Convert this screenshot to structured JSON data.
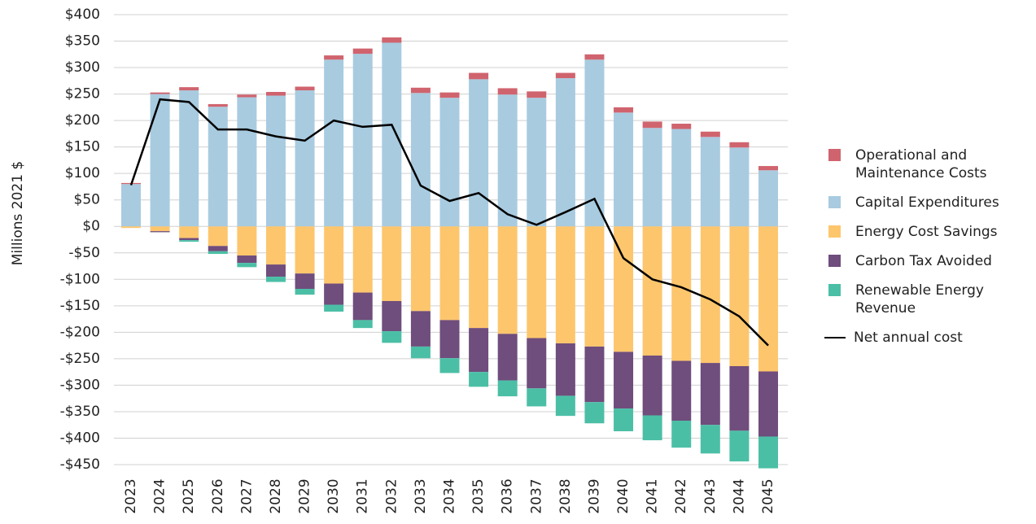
{
  "chart_data": {
    "type": "bar",
    "y_label": "Millions 2021 $",
    "categories": [
      "2023",
      "2024",
      "2025",
      "2026",
      "2027",
      "2028",
      "2029",
      "2030",
      "2031",
      "2032",
      "2033",
      "2034",
      "2035",
      "2036",
      "2037",
      "2038",
      "2039",
      "2040",
      "2041",
      "2042",
      "2043",
      "2044",
      "2045"
    ],
    "series": [
      {
        "name": "Operational and Maintenance Costs",
        "color": "#d0646e",
        "values": [
          2,
          3,
          6,
          5,
          5,
          7,
          7,
          8,
          10,
          10,
          10,
          10,
          12,
          12,
          12,
          10,
          10,
          10,
          12,
          10,
          10,
          10,
          8
        ]
      },
      {
        "name": "Capital Expenditures",
        "color": "#a8cbe0",
        "values": [
          80,
          250,
          257,
          226,
          244,
          247,
          257,
          315,
          326,
          347,
          252,
          243,
          278,
          249,
          243,
          280,
          315,
          215,
          186,
          184,
          169,
          149,
          106
        ]
      },
      {
        "name": "Energy Cost Savings",
        "color": "#fdc66d",
        "values": [
          -3,
          -9,
          -22,
          -37,
          -55,
          -72,
          -89,
          -108,
          -125,
          -141,
          -160,
          -177,
          -192,
          -203,
          -211,
          -221,
          -227,
          -237,
          -244,
          -254,
          -258,
          -264,
          -274
        ]
      },
      {
        "name": "Carbon Tax Avoided",
        "color": "#6f4d7c",
        "values": [
          0,
          -2,
          -4,
          -10,
          -14,
          -23,
          -29,
          -40,
          -52,
          -57,
          -67,
          -72,
          -83,
          -88,
          -95,
          -99,
          -105,
          -107,
          -113,
          -113,
          -117,
          -122,
          -123
        ]
      },
      {
        "name": "Renewable Energy Revenue",
        "color": "#4bbfa6",
        "values": [
          0,
          0,
          -3,
          -5,
          -8,
          -10,
          -11,
          -13,
          -15,
          -22,
          -22,
          -28,
          -28,
          -30,
          -34,
          -38,
          -40,
          -43,
          -47,
          -51,
          -54,
          -58,
          -60
        ]
      },
      {
        "name": "Net annual cost",
        "type": "line",
        "color": "#000000",
        "values": [
          78,
          240,
          235,
          183,
          183,
          170,
          162,
          200,
          188,
          192,
          77,
          48,
          63,
          23,
          3,
          27,
          52,
          -60,
          -100,
          -115,
          -138,
          -170,
          -225
        ]
      }
    ],
    "ylim": [
      -450,
      400
    ],
    "yticks": [
      {
        "value": 400,
        "label": "$400"
      },
      {
        "value": 350,
        "label": "$350"
      },
      {
        "value": 300,
        "label": "$300"
      },
      {
        "value": 250,
        "label": "$250"
      },
      {
        "value": 200,
        "label": "$200"
      },
      {
        "value": 150,
        "label": "$150"
      },
      {
        "value": 100,
        "label": "$100"
      },
      {
        "value": 50,
        "label": "$50"
      },
      {
        "value": 0,
        "label": "$0"
      },
      {
        "value": -50,
        "label": "-$50"
      },
      {
        "value": -100,
        "label": "-$100"
      },
      {
        "value": -150,
        "label": "-$150"
      },
      {
        "value": -200,
        "label": "-$200"
      },
      {
        "value": -250,
        "label": "-$250"
      },
      {
        "value": -300,
        "label": "-$300"
      },
      {
        "value": -350,
        "label": "-$350"
      },
      {
        "value": -400,
        "label": "-$400"
      },
      {
        "value": -450,
        "label": "-$450"
      }
    ],
    "grid": true
  }
}
